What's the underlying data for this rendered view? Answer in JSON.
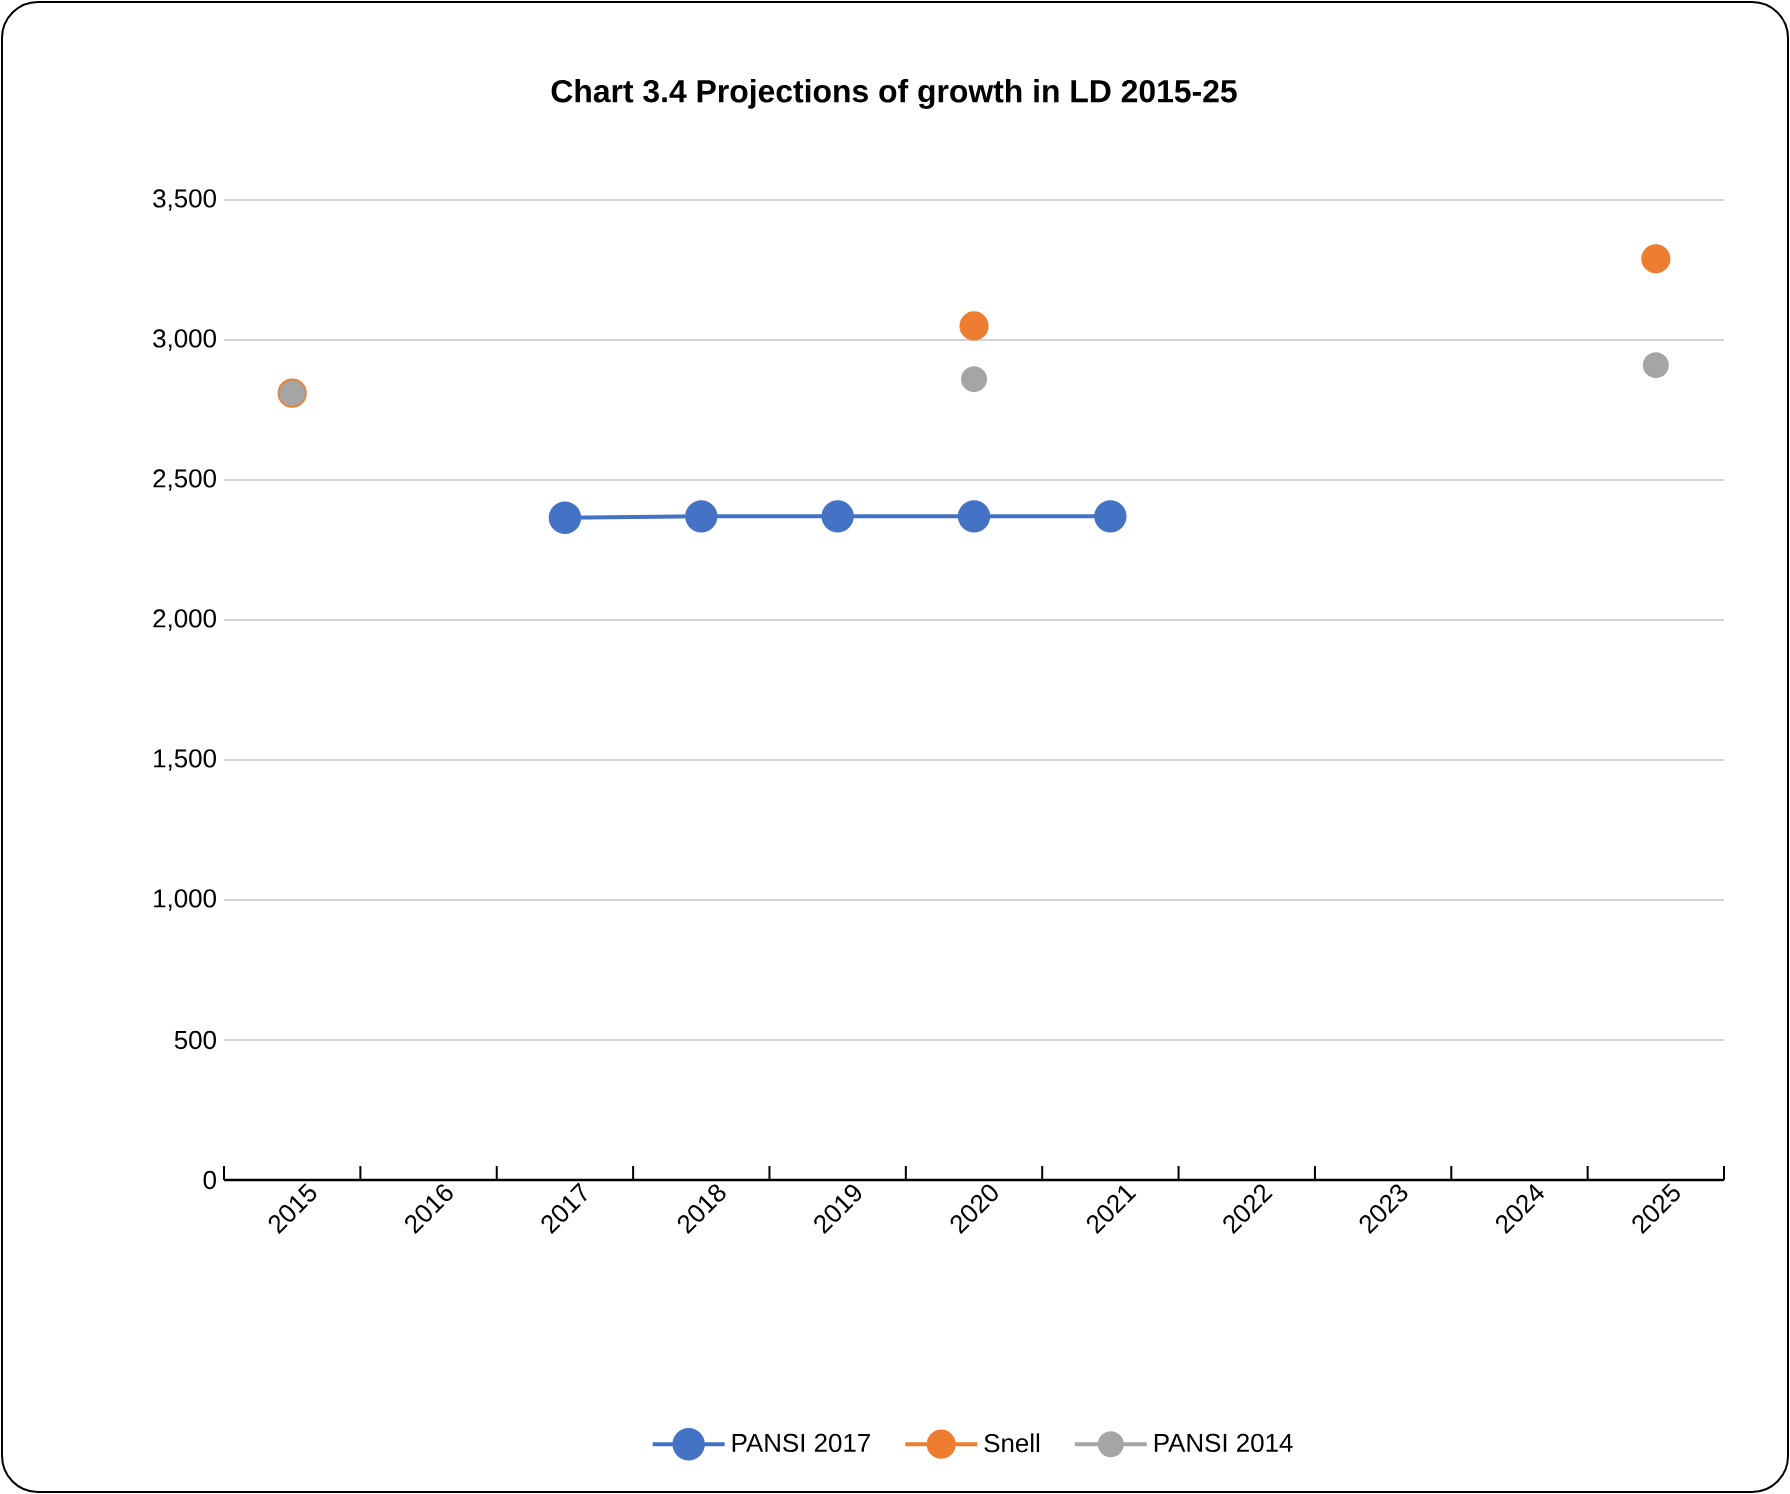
{
  "chart_data": {
    "type": "line",
    "title": "Chart 3.4 Projections of growth in LD 2015-25",
    "categories": [
      "2015",
      "2016",
      "2017",
      "2018",
      "2019",
      "2020",
      "2021",
      "2022",
      "2023",
      "2024",
      "2025"
    ],
    "series": [
      {
        "name": "PANSI 2017",
        "color": "#4472c4",
        "values": [
          null,
          null,
          2365,
          2370,
          2370,
          2370,
          2370,
          null,
          null,
          null,
          null
        ]
      },
      {
        "name": "Snell",
        "type": "scatter",
        "color": "#ed7d31",
        "values": [
          2810,
          null,
          null,
          null,
          null,
          3050,
          null,
          null,
          null,
          null,
          3290
        ]
      },
      {
        "name": "PANSI 2014",
        "type": "scatter",
        "color": "#a5a5a5",
        "values": [
          2810,
          null,
          null,
          null,
          null,
          2860,
          null,
          null,
          null,
          null,
          2910
        ]
      }
    ],
    "ylim": [
      0,
      3500
    ],
    "yticks": [
      {
        "value": 0,
        "label": "0"
      },
      {
        "value": 500,
        "label": "500"
      },
      {
        "value": 1000,
        "label": "1,000"
      },
      {
        "value": 1500,
        "label": "1,500"
      },
      {
        "value": 2000,
        "label": "2,000"
      },
      {
        "value": 2500,
        "label": "2,500"
      },
      {
        "value": 3000,
        "label": "3,000"
      },
      {
        "value": 3500,
        "label": "3,500"
      }
    ],
    "grid": "y",
    "legend": "bottom",
    "marker": "circle",
    "line_style": "solid"
  }
}
